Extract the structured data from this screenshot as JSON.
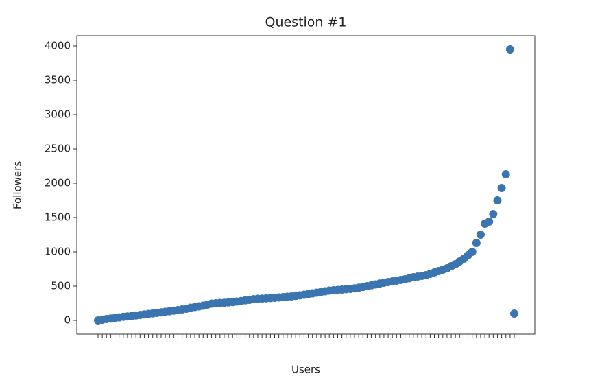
{
  "chart_data": {
    "type": "scatter",
    "title": "Question #1",
    "x_label": "Users",
    "y_label": "Followers",
    "color": "#3b75af",
    "categories": [
      null,
      null,
      null,
      null,
      null,
      null,
      null,
      null,
      null,
      null,
      null,
      null,
      null,
      null,
      null,
      null,
      null,
      null,
      null,
      null,
      null,
      null,
      null,
      null,
      null,
      null,
      null,
      null,
      null,
      null,
      null,
      null,
      null,
      null,
      null,
      null,
      null,
      null,
      null,
      null,
      null,
      null,
      null,
      null,
      null,
      null,
      null,
      null,
      null,
      null,
      null,
      null,
      null,
      null,
      null,
      null,
      null,
      null,
      null,
      null,
      null,
      null,
      null,
      null,
      null,
      null,
      null,
      null,
      null,
      null,
      null,
      null,
      null,
      null,
      null,
      null,
      null,
      null,
      null,
      null,
      null,
      null,
      null,
      null,
      null,
      null,
      null,
      null,
      null,
      null,
      null,
      null,
      null,
      null,
      null,
      null,
      null,
      null,
      null,
      null
    ],
    "values": [
      0,
      10,
      20,
      28,
      36,
      44,
      52,
      58,
      65,
      72,
      80,
      88,
      95,
      102,
      110,
      118,
      126,
      134,
      142,
      150,
      160,
      170,
      185,
      195,
      205,
      215,
      230,
      245,
      250,
      255,
      258,
      262,
      268,
      275,
      283,
      292,
      300,
      310,
      315,
      318,
      322,
      326,
      330,
      335,
      340,
      345,
      350,
      358,
      366,
      375,
      385,
      395,
      405,
      415,
      425,
      435,
      440,
      445,
      450,
      455,
      460,
      468,
      478,
      488,
      500,
      512,
      525,
      538,
      550,
      560,
      570,
      580,
      590,
      600,
      615,
      630,
      640,
      650,
      660,
      680,
      700,
      720,
      740,
      760,
      790,
      820,
      860,
      900,
      950,
      1000,
      1130,
      1250,
      1410,
      1440,
      1550,
      1750,
      1930,
      2130,
      3950,
      100
    ],
    "ylim": [
      -200,
      4150
    ],
    "yticks": [
      0,
      500,
      1000,
      1500,
      2000,
      2500,
      3000,
      3500,
      4000
    ]
  }
}
